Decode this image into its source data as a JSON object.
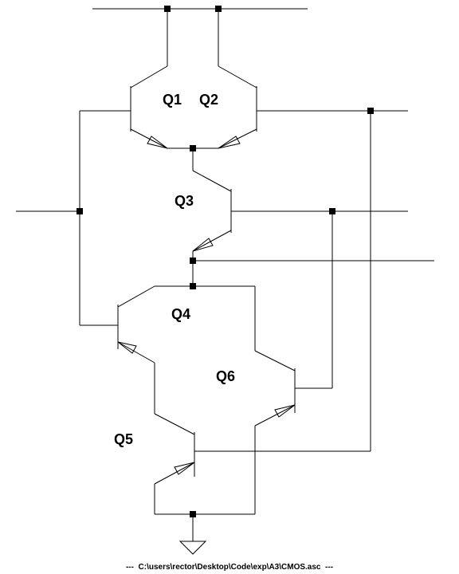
{
  "schematic": {
    "file_path": "C:\\users\\rector\\Desktop\\Code\\exp\\A3\\CMOS.asc",
    "footer_dashes_left": "---  ",
    "footer_dashes_right": "  ---",
    "transistors": [
      {
        "id": "q1",
        "label": "Q1"
      },
      {
        "id": "q2",
        "label": "Q2"
      },
      {
        "id": "q3",
        "label": "Q3"
      },
      {
        "id": "q4",
        "label": "Q4"
      },
      {
        "id": "q5",
        "label": "Q5"
      },
      {
        "id": "q6",
        "label": "Q6"
      }
    ],
    "ground_icon": "ground-icon",
    "colors": {
      "line": "#000000",
      "background": "#ffffff"
    }
  }
}
